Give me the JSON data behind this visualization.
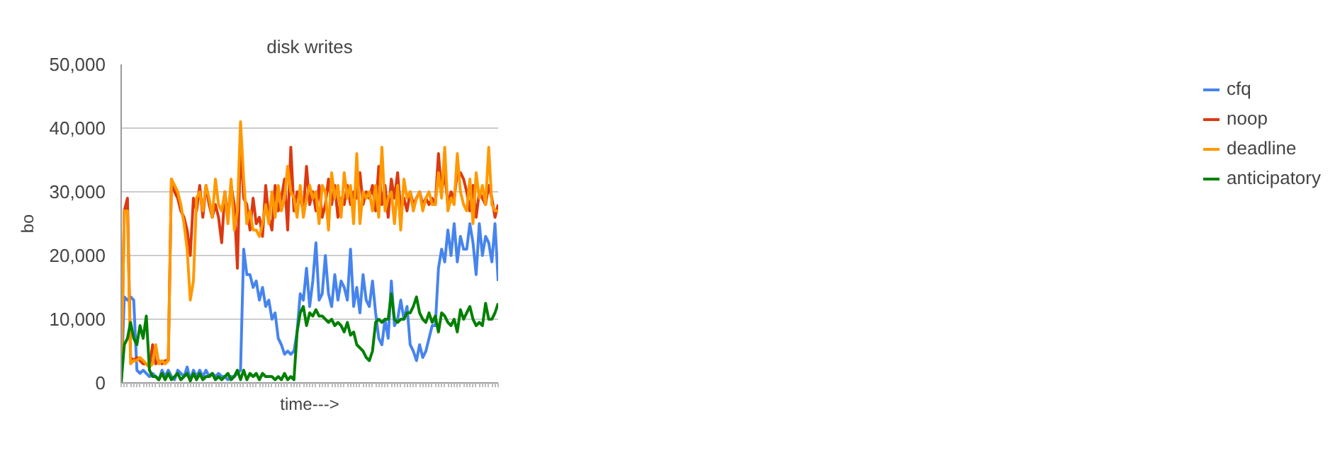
{
  "chart_data": {
    "type": "line",
    "title": "disk writes",
    "xlabel": "time--->",
    "ylabel": "bo",
    "categories": [
      null,
      null,
      null,
      null,
      null,
      null,
      null,
      null,
      null,
      null,
      null,
      null,
      null,
      null,
      null,
      null,
      null,
      null,
      null,
      null,
      null,
      null,
      null,
      null,
      null,
      null,
      null,
      null,
      null,
      null,
      null,
      null,
      null,
      null,
      null,
      null,
      null,
      null,
      null,
      null,
      null,
      null,
      null,
      null,
      null,
      null,
      null,
      null,
      null,
      null,
      null,
      null,
      null,
      null,
      null,
      null,
      null,
      null,
      null,
      null,
      null,
      null,
      null,
      null,
      null,
      null,
      null,
      null,
      null,
      null,
      null,
      null,
      null,
      null,
      null,
      null,
      null,
      null,
      null,
      null,
      null,
      null,
      null,
      null,
      null,
      null,
      null,
      null,
      null,
      null,
      null,
      null,
      null,
      null,
      null,
      null,
      null,
      null,
      null,
      null,
      null,
      null,
      null,
      null,
      null,
      null,
      null,
      null,
      null,
      null,
      null,
      null,
      null,
      null,
      null,
      null,
      null,
      null,
      null,
      null,
      null
    ],
    "ylim": [
      0,
      50000
    ],
    "yticks": [
      {
        "value": 0,
        "label": "0"
      },
      {
        "value": 10000,
        "label": "10,000"
      },
      {
        "value": 20000,
        "label": "20,000"
      },
      {
        "value": 30000,
        "label": "30,000"
      },
      {
        "value": 40000,
        "label": "40,000"
      },
      {
        "value": 50000,
        "label": "50,000"
      }
    ],
    "grid": "y",
    "legend": "right",
    "tick_labels": "y",
    "marker": "none",
    "line_style": "solid",
    "series": [
      {
        "name": "cfq",
        "color": "#4684ee",
        "values": [
          0,
          13500,
          13000,
          13500,
          13000,
          2000,
          1500,
          2000,
          1500,
          1000,
          1500,
          1000,
          500,
          2000,
          1000,
          2000,
          1000,
          500,
          2000,
          1500,
          1000,
          2500,
          500,
          2000,
          1000,
          2000,
          1000,
          2000,
          1000,
          1500,
          1000,
          1500,
          1000,
          1000,
          500,
          1000,
          1000,
          1500,
          2000,
          21000,
          17000,
          17000,
          15000,
          16000,
          13000,
          15000,
          12000,
          13000,
          10000,
          11000,
          7000,
          6000,
          4500,
          5000,
          4500,
          5000,
          8000,
          14000,
          13000,
          18000,
          12000,
          16000,
          22000,
          13000,
          14000,
          20000,
          14000,
          12000,
          17000,
          13000,
          16000,
          15000,
          13000,
          21000,
          12000,
          15000,
          11000,
          17000,
          13000,
          12000,
          16000,
          11000,
          7000,
          6000,
          10000,
          7000,
          16000,
          9000,
          10000,
          13000,
          10000,
          12000,
          6000,
          5000,
          3500,
          6000,
          4000,
          5000,
          7000,
          9000,
          9000,
          18000,
          21000,
          19000,
          24000,
          20000,
          25000,
          19000,
          23000,
          21000,
          21000,
          25000,
          22000,
          17000,
          25000,
          20000,
          23000,
          22000,
          19000,
          25000,
          16000
        ]
      },
      {
        "name": "noop",
        "color": "#dc3912",
        "values": [
          0,
          27000,
          29000,
          4000,
          3500,
          4000,
          3500,
          3000,
          3000,
          2500,
          6000,
          3000,
          3500,
          3000,
          3500,
          3500,
          32000,
          30000,
          29000,
          27000,
          26000,
          24000,
          20000,
          29000,
          27000,
          31000,
          26000,
          31000,
          28000,
          26000,
          28000,
          26000,
          22000,
          30000,
          26000,
          31000,
          28000,
          18000,
          38000,
          29000,
          28000,
          24000,
          29000,
          25000,
          26000,
          23000,
          31000,
          26000,
          24000,
          31000,
          27000,
          29000,
          32000,
          24000,
          37000,
          27000,
          30000,
          29000,
          27000,
          34000,
          28000,
          30000,
          27000,
          31000,
          26000,
          28000,
          32000,
          28000,
          31000,
          26000,
          29000,
          28000,
          31000,
          28000,
          30000,
          29000,
          33000,
          28000,
          30000,
          29000,
          31000,
          27000,
          34000,
          28000,
          31000,
          26000,
          32000,
          29000,
          33000,
          27000,
          29000,
          27000,
          30000,
          28000,
          29000,
          30000,
          28000,
          29000,
          28000,
          29000,
          28000,
          36000,
          30000,
          33000,
          28000,
          30000,
          29000,
          33000,
          33000,
          32000,
          30000,
          27000,
          31000,
          26000,
          30000,
          29000,
          28000,
          31000,
          29000,
          26000,
          28000
        ]
      },
      {
        "name": "deadline",
        "color": "#ff9900",
        "values": [
          0,
          27000,
          27000,
          3000,
          3500,
          3500,
          4000,
          3500,
          3000,
          2500,
          3000,
          6000,
          3000,
          3500,
          3000,
          3500,
          32000,
          31000,
          30000,
          28000,
          25000,
          21000,
          13000,
          16000,
          29000,
          30000,
          27000,
          31000,
          29000,
          26000,
          32000,
          28000,
          27000,
          30000,
          25000,
          32000,
          24000,
          27000,
          41000,
          32000,
          25000,
          27000,
          24000,
          24000,
          23000,
          25000,
          28000,
          25000,
          30000,
          26000,
          31000,
          27000,
          29000,
          34000,
          30000,
          29000,
          26000,
          31000,
          26000,
          29000,
          31000,
          29000,
          30000,
          25000,
          31000,
          30000,
          24000,
          33000,
          29000,
          31000,
          26000,
          33000,
          29000,
          31000,
          25000,
          36000,
          25000,
          30000,
          29000,
          30000,
          27000,
          31000,
          26000,
          37000,
          27000,
          29000,
          30000,
          25000,
          31000,
          24000,
          32000,
          29000,
          30000,
          27000,
          29000,
          30000,
          27000,
          29000,
          30000,
          28000,
          28000,
          33000,
          29000,
          37000,
          27000,
          29000,
          28000,
          36000,
          30000,
          28000,
          27000,
          32000,
          25000,
          33000,
          29000,
          31000,
          28000,
          37000,
          28000,
          27000,
          27000
        ]
      },
      {
        "name": "anticipatory",
        "color": "#008000",
        "values": [
          0,
          6000,
          7000,
          9500,
          7000,
          6000,
          9000,
          7000,
          10500,
          2000,
          1000,
          1000,
          500,
          1500,
          500,
          1500,
          500,
          1000,
          1500,
          500,
          1000,
          1500,
          300,
          1500,
          500,
          1500,
          500,
          1000,
          1000,
          1500,
          500,
          1000,
          500,
          1000,
          1500,
          500,
          1000,
          2000,
          500,
          2000,
          500,
          1500,
          1000,
          1500,
          500,
          1500,
          1000,
          1000,
          1000,
          500,
          1000,
          500,
          1500,
          500,
          1000,
          500,
          8000,
          11000,
          12000,
          9000,
          11000,
          10500,
          11500,
          10500,
          10500,
          10000,
          9500,
          10000,
          9000,
          9500,
          9000,
          8000,
          9500,
          7500,
          8000,
          6000,
          5500,
          5000,
          4000,
          3500,
          5000,
          9500,
          10000,
          9500,
          10000,
          10000,
          14000,
          10000,
          9500,
          10000,
          10000,
          11000,
          11000,
          12000,
          13500,
          11000,
          10000,
          9500,
          11000,
          9500,
          10500,
          8000,
          11000,
          10500,
          9500,
          9000,
          10000,
          8000,
          11500,
          10000,
          11000,
          12000,
          10000,
          9000,
          9500,
          9000,
          12500,
          10000,
          10000,
          11000,
          12500
        ]
      }
    ]
  }
}
